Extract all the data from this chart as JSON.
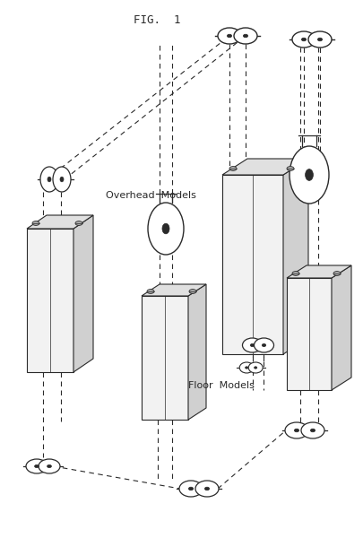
{
  "title": "FIG.  1",
  "label_overhead": "Overhead  Models",
  "label_floor": "Floor  Models",
  "bg_color": "#ffffff",
  "line_color": "#2a2a2a",
  "dashed_color": "#2a2a2a",
  "fig_width": 4.05,
  "fig_height": 6.0,
  "dpi": 100
}
